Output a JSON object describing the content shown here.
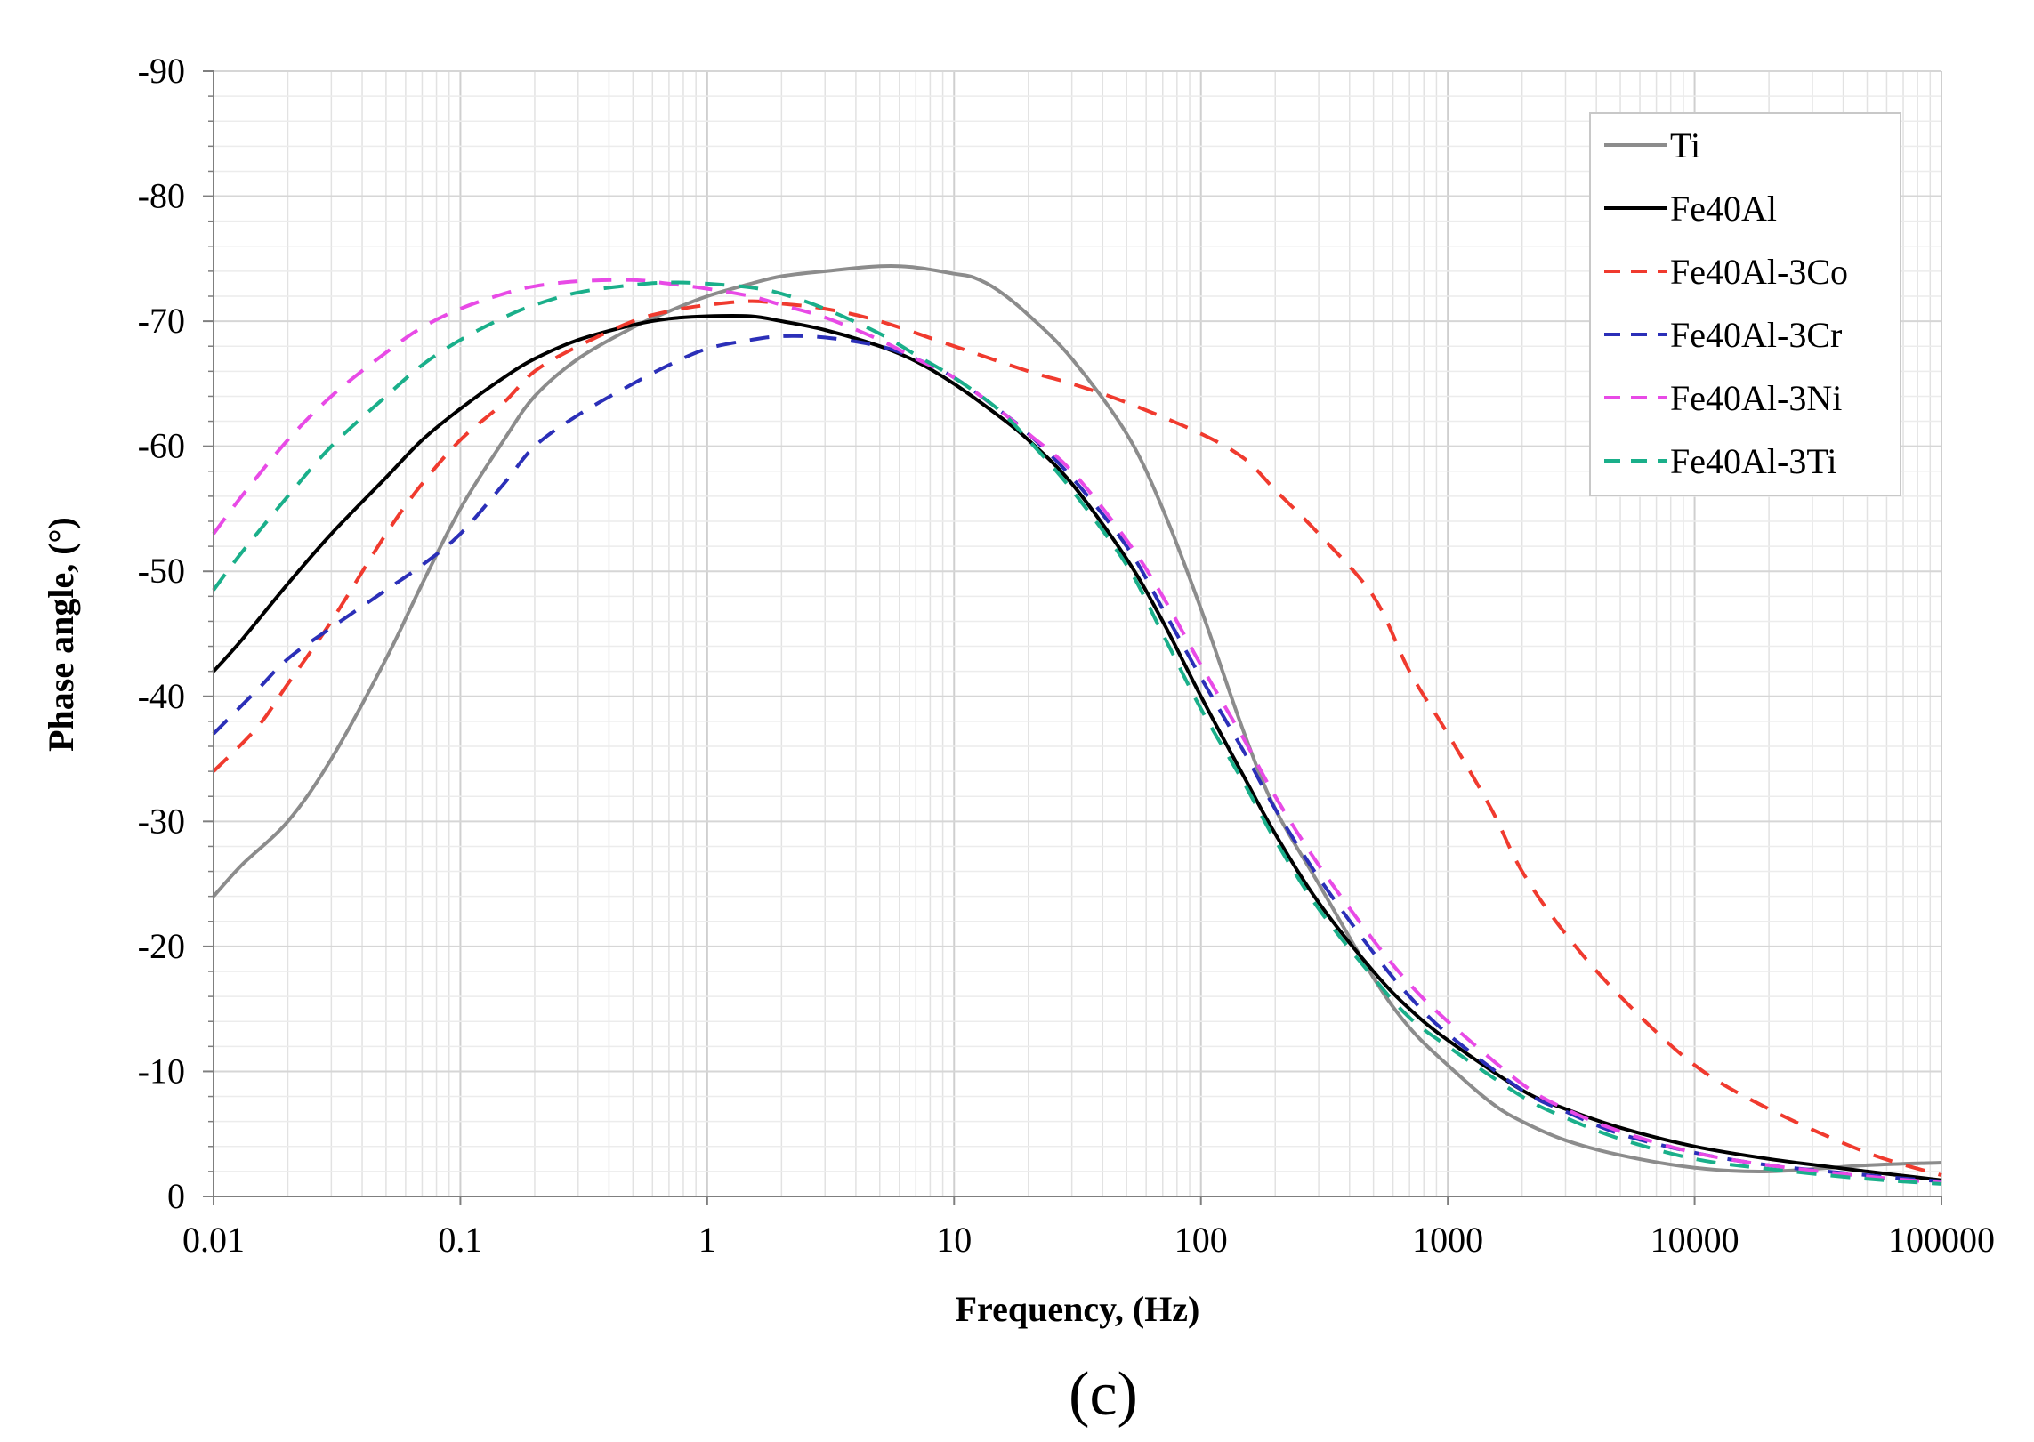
{
  "chart_data": {
    "type": "line",
    "title": "",
    "caption": "(c)",
    "xlabel": "Frequency, (Hz)",
    "ylabel": "Phase angle, (°)",
    "xscale": "log",
    "xlim": [
      0.01,
      100000
    ],
    "ylim": [
      0,
      -90
    ],
    "xticks": [
      0.01,
      0.1,
      1,
      10,
      100,
      1000,
      10000,
      100000
    ],
    "xtick_labels": [
      "0.01",
      "0.1",
      "1",
      "10",
      "100",
      "1000",
      "10000",
      "100000"
    ],
    "yticks": [
      -90,
      -80,
      -70,
      -60,
      -50,
      -40,
      -30,
      -20,
      -10,
      0
    ],
    "ytick_labels": [
      "-90",
      "-80",
      "-70",
      "-60",
      "-50",
      "-40",
      "-30",
      "-20",
      "-10",
      "0"
    ],
    "grid": true,
    "legend_position": "top-right",
    "series": [
      {
        "name": "Ti",
        "color": "#8c8c8c",
        "style": "solid",
        "width": 4,
        "points": [
          [
            0.01,
            -24
          ],
          [
            0.013,
            -26.5
          ],
          [
            0.02,
            -30
          ],
          [
            0.03,
            -35
          ],
          [
            0.05,
            -43
          ],
          [
            0.07,
            -49
          ],
          [
            0.1,
            -55
          ],
          [
            0.15,
            -60.5
          ],
          [
            0.2,
            -64
          ],
          [
            0.3,
            -67
          ],
          [
            0.5,
            -69.5
          ],
          [
            0.7,
            -70.8
          ],
          [
            1,
            -72
          ],
          [
            1.5,
            -73
          ],
          [
            2,
            -73.6
          ],
          [
            3,
            -74
          ],
          [
            5,
            -74.4
          ],
          [
            7,
            -74.3
          ],
          [
            10,
            -73.8
          ],
          [
            12,
            -73.5
          ],
          [
            15,
            -72.5
          ],
          [
            20,
            -70.5
          ],
          [
            30,
            -67
          ],
          [
            50,
            -61
          ],
          [
            70,
            -55
          ],
          [
            100,
            -47
          ],
          [
            150,
            -37
          ],
          [
            200,
            -31
          ],
          [
            300,
            -25
          ],
          [
            500,
            -17.5
          ],
          [
            700,
            -13.5
          ],
          [
            1000,
            -10.5
          ],
          [
            1500,
            -7.5
          ],
          [
            2000,
            -6
          ],
          [
            3000,
            -4.5
          ],
          [
            5000,
            -3.3
          ],
          [
            10000,
            -2.3
          ],
          [
            20000,
            -2
          ],
          [
            50000,
            -2.5
          ],
          [
            100000,
            -2.7
          ]
        ]
      },
      {
        "name": "Fe40Al",
        "color": "#000000",
        "style": "solid",
        "width": 4,
        "points": [
          [
            0.01,
            -42
          ],
          [
            0.013,
            -44.5
          ],
          [
            0.02,
            -49
          ],
          [
            0.03,
            -53
          ],
          [
            0.05,
            -57.5
          ],
          [
            0.07,
            -60.5
          ],
          [
            0.1,
            -63
          ],
          [
            0.15,
            -65.5
          ],
          [
            0.2,
            -67
          ],
          [
            0.3,
            -68.5
          ],
          [
            0.5,
            -69.7
          ],
          [
            0.7,
            -70.2
          ],
          [
            1,
            -70.4
          ],
          [
            1.5,
            -70.4
          ],
          [
            2,
            -70
          ],
          [
            3,
            -69.3
          ],
          [
            5,
            -68
          ],
          [
            7,
            -66.8
          ],
          [
            10,
            -65
          ],
          [
            15,
            -62.5
          ],
          [
            20,
            -60.5
          ],
          [
            30,
            -57
          ],
          [
            50,
            -51
          ],
          [
            70,
            -46
          ],
          [
            100,
            -40
          ],
          [
            150,
            -33.5
          ],
          [
            200,
            -29
          ],
          [
            300,
            -23.5
          ],
          [
            500,
            -18
          ],
          [
            700,
            -15
          ],
          [
            1000,
            -12.5
          ],
          [
            2000,
            -8.5
          ],
          [
            3000,
            -7
          ],
          [
            5000,
            -5.5
          ],
          [
            10000,
            -4
          ],
          [
            20000,
            -3
          ],
          [
            50000,
            -2
          ],
          [
            100000,
            -1.3
          ]
        ]
      },
      {
        "name": "Fe40Al-3Co",
        "color": "#f03a2e",
        "style": "dashed",
        "width": 4,
        "points": [
          [
            0.01,
            -34
          ],
          [
            0.015,
            -37.5
          ],
          [
            0.02,
            -41
          ],
          [
            0.03,
            -46
          ],
          [
            0.05,
            -53
          ],
          [
            0.07,
            -57
          ],
          [
            0.1,
            -60.5
          ],
          [
            0.15,
            -63.5
          ],
          [
            0.2,
            -66
          ],
          [
            0.3,
            -68
          ],
          [
            0.5,
            -70
          ],
          [
            0.7,
            -70.8
          ],
          [
            1,
            -71.3
          ],
          [
            1.5,
            -71.6
          ],
          [
            2,
            -71.4
          ],
          [
            3,
            -71
          ],
          [
            5,
            -70
          ],
          [
            10,
            -68
          ],
          [
            20,
            -66
          ],
          [
            30,
            -65
          ],
          [
            50,
            -63.5
          ],
          [
            100,
            -61
          ],
          [
            150,
            -59
          ],
          [
            200,
            -56.5
          ],
          [
            300,
            -53
          ],
          [
            500,
            -48
          ],
          [
            700,
            -42
          ],
          [
            1000,
            -37
          ],
          [
            1500,
            -31
          ],
          [
            2000,
            -26
          ],
          [
            3000,
            -21
          ],
          [
            5000,
            -16
          ],
          [
            10000,
            -10.5
          ],
          [
            20000,
            -7
          ],
          [
            50000,
            -3.5
          ],
          [
            100000,
            -1.7
          ]
        ]
      },
      {
        "name": "Fe40Al-3Cr",
        "color": "#2b2fb8",
        "style": "dashed",
        "width": 4,
        "points": [
          [
            0.01,
            -37
          ],
          [
            0.015,
            -40.5
          ],
          [
            0.02,
            -43
          ],
          [
            0.03,
            -45.5
          ],
          [
            0.05,
            -48.5
          ],
          [
            0.07,
            -50.5
          ],
          [
            0.1,
            -53
          ],
          [
            0.15,
            -57
          ],
          [
            0.2,
            -60
          ],
          [
            0.3,
            -62.5
          ],
          [
            0.5,
            -65
          ],
          [
            0.7,
            -66.5
          ],
          [
            1,
            -67.8
          ],
          [
            1.5,
            -68.5
          ],
          [
            2,
            -68.8
          ],
          [
            3,
            -68.7
          ],
          [
            5,
            -68
          ],
          [
            7,
            -67
          ],
          [
            10,
            -65.5
          ],
          [
            15,
            -63
          ],
          [
            20,
            -61
          ],
          [
            30,
            -57.5
          ],
          [
            50,
            -52
          ],
          [
            70,
            -47
          ],
          [
            100,
            -41.5
          ],
          [
            150,
            -35.5
          ],
          [
            200,
            -31
          ],
          [
            300,
            -25.5
          ],
          [
            500,
            -19.5
          ],
          [
            700,
            -16
          ],
          [
            1000,
            -13
          ],
          [
            2000,
            -8.5
          ],
          [
            3000,
            -6.8
          ],
          [
            5000,
            -5
          ],
          [
            10000,
            -3.5
          ],
          [
            20000,
            -2.5
          ],
          [
            50000,
            -1.7
          ],
          [
            100000,
            -1.2
          ]
        ]
      },
      {
        "name": "Fe40Al-3Ni",
        "color": "#e84ae6",
        "style": "dashed",
        "width": 4,
        "points": [
          [
            0.01,
            -53
          ],
          [
            0.013,
            -56
          ],
          [
            0.02,
            -60.5
          ],
          [
            0.03,
            -64
          ],
          [
            0.05,
            -67.5
          ],
          [
            0.07,
            -69.5
          ],
          [
            0.1,
            -71
          ],
          [
            0.15,
            -72.2
          ],
          [
            0.2,
            -72.8
          ],
          [
            0.3,
            -73.2
          ],
          [
            0.5,
            -73.3
          ],
          [
            0.7,
            -73
          ],
          [
            1,
            -72.6
          ],
          [
            1.5,
            -72
          ],
          [
            2,
            -71.3
          ],
          [
            3,
            -70.3
          ],
          [
            5,
            -68.5
          ],
          [
            7,
            -67
          ],
          [
            10,
            -65.5
          ],
          [
            15,
            -63
          ],
          [
            20,
            -61
          ],
          [
            30,
            -58
          ],
          [
            50,
            -52.5
          ],
          [
            70,
            -48
          ],
          [
            100,
            -42.5
          ],
          [
            150,
            -36.5
          ],
          [
            200,
            -32
          ],
          [
            300,
            -26.5
          ],
          [
            500,
            -20.5
          ],
          [
            700,
            -17
          ],
          [
            1000,
            -14
          ],
          [
            2000,
            -9
          ],
          [
            3000,
            -7
          ],
          [
            5000,
            -5.2
          ],
          [
            10000,
            -3.5
          ],
          [
            20000,
            -2.5
          ],
          [
            50000,
            -1.6
          ],
          [
            100000,
            -1.1
          ]
        ]
      },
      {
        "name": "Fe40Al-3Ti",
        "color": "#1aaf8a",
        "style": "dashed",
        "width": 4,
        "points": [
          [
            0.01,
            -48.5
          ],
          [
            0.013,
            -51.5
          ],
          [
            0.02,
            -56
          ],
          [
            0.03,
            -60
          ],
          [
            0.05,
            -64
          ],
          [
            0.07,
            -66.5
          ],
          [
            0.1,
            -68.5
          ],
          [
            0.15,
            -70.3
          ],
          [
            0.2,
            -71.3
          ],
          [
            0.3,
            -72.3
          ],
          [
            0.5,
            -72.9
          ],
          [
            0.7,
            -73.1
          ],
          [
            1,
            -73
          ],
          [
            1.5,
            -72.7
          ],
          [
            2,
            -72.2
          ],
          [
            3,
            -71
          ],
          [
            5,
            -69
          ],
          [
            7,
            -67.3
          ],
          [
            10,
            -65.5
          ],
          [
            15,
            -63
          ],
          [
            20,
            -60.5
          ],
          [
            30,
            -56.5
          ],
          [
            50,
            -50.5
          ],
          [
            70,
            -45
          ],
          [
            100,
            -39
          ],
          [
            150,
            -33
          ],
          [
            200,
            -28.5
          ],
          [
            300,
            -23
          ],
          [
            500,
            -17.5
          ],
          [
            700,
            -14.3
          ],
          [
            1000,
            -12
          ],
          [
            2000,
            -8
          ],
          [
            3000,
            -6.3
          ],
          [
            5000,
            -4.6
          ],
          [
            10000,
            -3
          ],
          [
            20000,
            -2.2
          ],
          [
            50000,
            -1.4
          ],
          [
            100000,
            -1
          ]
        ]
      }
    ]
  }
}
